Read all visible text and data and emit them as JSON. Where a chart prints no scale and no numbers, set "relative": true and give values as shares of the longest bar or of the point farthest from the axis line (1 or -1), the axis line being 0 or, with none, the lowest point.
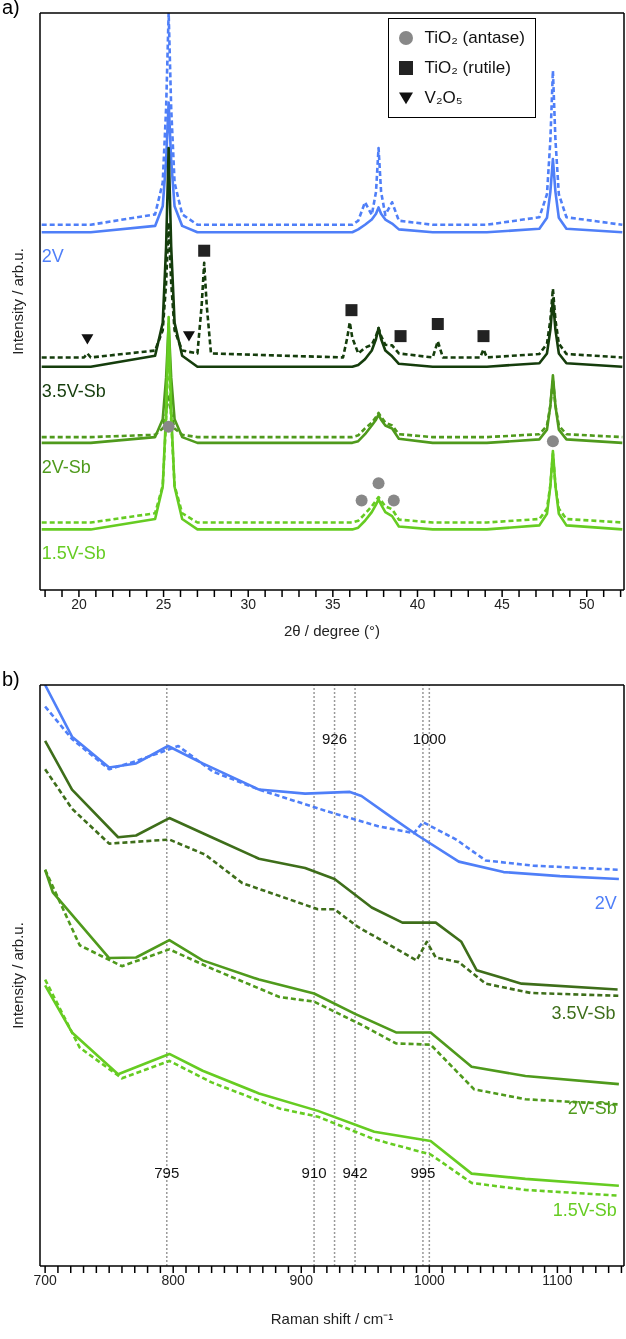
{
  "chart_data": [
    {
      "type": "line",
      "title": "a)",
      "xlabel": "2θ / degree (°)",
      "ylabel": "Intensity / arb.u.",
      "relative": true,
      "legend": "top right",
      "xlim": [
        17.7,
        52.2
      ],
      "xticks": [
        {
          "value": 18,
          "label": null
        },
        {
          "value": 19,
          "label": null
        },
        20,
        {
          "value": 21,
          "label": null
        },
        {
          "value": 22,
          "label": null
        },
        {
          "value": 23,
          "label": null
        },
        {
          "value": 24,
          "label": null
        },
        25,
        {
          "value": 26,
          "label": null
        },
        {
          "value": 27,
          "label": null
        },
        {
          "value": 28,
          "label": null
        },
        {
          "value": 29,
          "label": null
        },
        30,
        {
          "value": 31,
          "label": null
        },
        {
          "value": 32,
          "label": null
        },
        {
          "value": 33,
          "label": null
        },
        {
          "value": 34,
          "label": null
        },
        35,
        {
          "value": 36,
          "label": null
        },
        {
          "value": 37,
          "label": null
        },
        {
          "value": 38,
          "label": null
        },
        {
          "value": 39,
          "label": null
        },
        40,
        {
          "value": 41,
          "label": null
        },
        {
          "value": 42,
          "label": null
        },
        {
          "value": 43,
          "label": null
        },
        {
          "value": 44,
          "label": null
        },
        45,
        {
          "value": 46,
          "label": null
        },
        {
          "value": 47,
          "label": null
        },
        {
          "value": 48,
          "label": null
        },
        {
          "value": 49,
          "label": null
        },
        50,
        {
          "value": 51,
          "label": null
        },
        {
          "value": 52,
          "label": null
        }
      ],
      "x": [
        17.8,
        20.3,
        20.5,
        20.7,
        24.5,
        24.95,
        25.15,
        25.3,
        25.45,
        25.65,
        26.1,
        27.0,
        27.25,
        27.4,
        27.55,
        27.8,
        35.6,
        35.85,
        36.0,
        36.15,
        36.5,
        36.9,
        37.3,
        37.55,
        37.7,
        37.85,
        38.1,
        38.5,
        38.9,
        40.9,
        41.2,
        41.5,
        43.7,
        43.9,
        44.1,
        47.2,
        47.65,
        47.85,
        48.0,
        48.15,
        48.35,
        48.8,
        52.1
      ],
      "series": [
        {
          "name": "2V",
          "color": "#4f7ff8",
          "line_style": "solid",
          "values": [
            0.62,
            0.62,
            0.62,
            0.62,
            0.631,
            0.665,
            0.744,
            0.845,
            0.744,
            0.665,
            0.631,
            0.62,
            0.62,
            0.62,
            0.62,
            0.62,
            0.62,
            0.62,
            0.62,
            0.62,
            0.625,
            0.633,
            0.642,
            0.652,
            0.663,
            0.652,
            0.642,
            0.635,
            0.625,
            0.62,
            0.62,
            0.62,
            0.62,
            0.62,
            0.62,
            0.626,
            0.645,
            0.69,
            0.747,
            0.69,
            0.645,
            0.626,
            0.62
          ]
        },
        {
          "color": "#4f7ff8",
          "line_style": "dashed",
          "values": [
            0.633,
            0.633,
            0.633,
            0.633,
            0.651,
            0.706,
            0.835,
            1.0,
            0.835,
            0.706,
            0.651,
            0.633,
            0.633,
            0.633,
            0.633,
            0.633,
            0.633,
            0.633,
            0.633,
            0.633,
            0.64,
            0.672,
            0.65,
            0.69,
            0.766,
            0.69,
            0.65,
            0.672,
            0.64,
            0.633,
            0.633,
            0.633,
            0.633,
            0.633,
            0.633,
            0.646,
            0.686,
            0.78,
            0.9,
            0.78,
            0.686,
            0.646,
            0.633
          ]
        },
        {
          "name": "3.5V-Sb",
          "color": "#153d0c",
          "line_style": "solid",
          "values": [
            0.387,
            0.387,
            0.387,
            0.387,
            0.406,
            0.463,
            0.595,
            0.766,
            0.595,
            0.463,
            0.406,
            0.387,
            0.387,
            0.387,
            0.387,
            0.387,
            0.387,
            0.387,
            0.387,
            0.387,
            0.39,
            0.4,
            0.415,
            0.435,
            0.454,
            0.435,
            0.415,
            0.405,
            0.392,
            0.387,
            0.387,
            0.387,
            0.387,
            0.387,
            0.387,
            0.393,
            0.41,
            0.451,
            0.504,
            0.451,
            0.41,
            0.393,
            0.387
          ]
        },
        {
          "color": "#153d0c",
          "line_style": "dashed",
          "values": [
            0.403,
            0.403,
            0.41,
            0.403,
            0.415,
            0.45,
            0.532,
            0.637,
            0.532,
            0.45,
            0.415,
            0.41,
            0.493,
            0.567,
            0.493,
            0.41,
            0.403,
            0.437,
            0.464,
            0.437,
            0.41,
            0.42,
            0.425,
            0.44,
            0.454,
            0.44,
            0.425,
            0.424,
            0.41,
            0.403,
            0.431,
            0.403,
            0.403,
            0.417,
            0.403,
            0.409,
            0.427,
            0.468,
            0.522,
            0.468,
            0.427,
            0.409,
            0.403
          ]
        },
        {
          "name": "2V-Sb",
          "color": "#4f9a1c",
          "line_style": "solid",
          "values": [
            0.255,
            0.255,
            0.255,
            0.255,
            0.265,
            0.296,
            0.368,
            0.461,
            0.368,
            0.296,
            0.265,
            0.255,
            0.255,
            0.255,
            0.255,
            0.255,
            0.255,
            0.255,
            0.255,
            0.255,
            0.258,
            0.27,
            0.285,
            0.295,
            0.304,
            0.295,
            0.285,
            0.28,
            0.262,
            0.255,
            0.255,
            0.255,
            0.255,
            0.255,
            0.255,
            0.261,
            0.278,
            0.319,
            0.372,
            0.319,
            0.278,
            0.261,
            0.255
          ]
        },
        {
          "color": "#4f9a1c",
          "line_style": "dashed",
          "values": [
            0.265,
            0.265,
            0.265,
            0.265,
            0.269,
            0.28,
            0.306,
            0.339,
            0.306,
            0.28,
            0.269,
            0.265,
            0.265,
            0.265,
            0.265,
            0.265,
            0.265,
            0.265,
            0.265,
            0.265,
            0.268,
            0.28,
            0.29,
            0.3,
            0.307,
            0.3,
            0.29,
            0.285,
            0.27,
            0.265,
            0.265,
            0.265,
            0.265,
            0.265,
            0.265,
            0.27,
            0.285,
            0.32,
            0.365,
            0.32,
            0.285,
            0.27,
            0.265
          ]
        },
        {
          "name": "1.5V-Sb",
          "color": "#66cc22",
          "line_style": "solid",
          "values": [
            0.105,
            0.105,
            0.105,
            0.105,
            0.123,
            0.179,
            0.307,
            0.473,
            0.307,
            0.179,
            0.123,
            0.105,
            0.105,
            0.105,
            0.105,
            0.105,
            0.105,
            0.105,
            0.105,
            0.105,
            0.108,
            0.12,
            0.135,
            0.148,
            0.157,
            0.148,
            0.135,
            0.128,
            0.11,
            0.105,
            0.105,
            0.105,
            0.105,
            0.105,
            0.105,
            0.112,
            0.132,
            0.18,
            0.241,
            0.18,
            0.132,
            0.112,
            0.105
          ]
        },
        {
          "color": "#66cc22",
          "line_style": "dashed",
          "values": [
            0.117,
            0.117,
            0.117,
            0.117,
            0.133,
            0.181,
            0.292,
            0.435,
            0.292,
            0.181,
            0.133,
            0.117,
            0.117,
            0.117,
            0.117,
            0.117,
            0.117,
            0.117,
            0.117,
            0.117,
            0.12,
            0.132,
            0.145,
            0.155,
            0.161,
            0.155,
            0.145,
            0.14,
            0.122,
            0.117,
            0.117,
            0.117,
            0.117,
            0.117,
            0.117,
            0.123,
            0.141,
            0.182,
            0.236,
            0.182,
            0.141,
            0.123,
            0.117
          ]
        },
        {
          "type": "scatter",
          "name": "TiO₂ (antase)",
          "color": "#888888",
          "marker": "circle",
          "x": [
            25.3,
            48.0,
            36.7,
            37.7,
            38.6
          ],
          "values": [
            0.283,
            0.258,
            0.155,
            0.185,
            0.155
          ]
        },
        {
          "type": "scatter",
          "name": "TiO₂ (rutile)",
          "color": "#222222",
          "marker": "square",
          "x": [
            27.4,
            36.1,
            39.0,
            41.2,
            43.9
          ],
          "values": [
            0.588,
            0.485,
            0.44,
            0.461,
            0.44
          ]
        },
        {
          "type": "scatter",
          "name": "V₂O₅",
          "color": "#111111",
          "marker": "triangle",
          "x": [
            20.5,
            26.5
          ],
          "values": [
            0.435,
            0.44
          ]
        }
      ]
    },
    {
      "type": "line",
      "title": "b)",
      "xlabel": "Raman shift / cm⁻¹",
      "ylabel": "Intensity / arb.u.",
      "relative": true,
      "xlim": [
        696,
        1152
      ],
      "xticks": [
        700,
        {
          "value": 710,
          "label": null
        },
        {
          "value": 720,
          "label": null
        },
        {
          "value": 730,
          "label": null
        },
        {
          "value": 740,
          "label": null
        },
        {
          "value": 750,
          "label": null
        },
        {
          "value": 760,
          "label": null
        },
        {
          "value": 770,
          "label": null
        },
        {
          "value": 780,
          "label": null
        },
        {
          "value": 790,
          "label": null
        },
        800,
        {
          "value": 810,
          "label": null
        },
        {
          "value": 820,
          "label": null
        },
        {
          "value": 830,
          "label": null
        },
        {
          "value": 840,
          "label": null
        },
        {
          "value": 850,
          "label": null
        },
        {
          "value": 860,
          "label": null
        },
        {
          "value": 870,
          "label": null
        },
        {
          "value": 880,
          "label": null
        },
        {
          "value": 890,
          "label": null
        },
        900,
        {
          "value": 910,
          "label": null
        },
        {
          "value": 920,
          "label": null
        },
        {
          "value": 930,
          "label": null
        },
        {
          "value": 940,
          "label": null
        },
        {
          "value": 950,
          "label": null
        },
        {
          "value": 960,
          "label": null
        },
        {
          "value": 970,
          "label": null
        },
        {
          "value": 980,
          "label": null
        },
        {
          "value": 990,
          "label": null
        },
        1000,
        {
          "value": 1010,
          "label": null
        },
        {
          "value": 1020,
          "label": null
        },
        {
          "value": 1030,
          "label": null
        },
        {
          "value": 1040,
          "label": null
        },
        {
          "value": 1050,
          "label": null
        },
        {
          "value": 1060,
          "label": null
        },
        {
          "value": 1070,
          "label": null
        },
        {
          "value": 1080,
          "label": null
        },
        {
          "value": 1090,
          "label": null
        },
        1100,
        {
          "value": 1110,
          "label": null
        },
        {
          "value": 1120,
          "label": null
        },
        {
          "value": 1130,
          "label": null
        },
        {
          "value": 1140,
          "label": null
        },
        {
          "value": 1150,
          "label": null
        }
      ],
      "ref_lines": [
        {
          "axis": "x",
          "value": 795,
          "label": "795",
          "color": "#999999",
          "line_style": "dotted"
        },
        {
          "axis": "x",
          "value": 910,
          "label": "910",
          "color": "#999999",
          "line_style": "dotted"
        },
        {
          "axis": "x",
          "value": 926,
          "label": "926",
          "color": "#999999",
          "line_style": "dotted"
        },
        {
          "axis": "x",
          "value": 942,
          "label": "942",
          "color": "#999999",
          "line_style": "dotted"
        },
        {
          "axis": "x",
          "value": 995,
          "label": "995",
          "color": "#999999",
          "line_style": "dotted"
        },
        {
          "axis": "x",
          "value": 1000,
          "label": "1000",
          "color": "#999999",
          "line_style": "dotted"
        }
      ],
      "series": [
        {
          "name": "2V",
          "color": "#4f7ff8",
          "line_style": "solid",
          "x": [
            700,
            721,
            750,
            771,
            796,
            823,
            867,
            903,
            938,
            947,
            970,
            991,
            1023,
            1058,
            1102,
            1148
          ],
          "values": [
            1.0,
            0.911,
            0.858,
            0.865,
            0.895,
            0.865,
            0.82,
            0.813,
            0.816,
            0.809,
            0.773,
            0.741,
            0.696,
            0.678,
            0.671,
            0.666
          ]
        },
        {
          "color": "#4f7ff8",
          "line_style": "dashed",
          "x": [
            700,
            721,
            750,
            771,
            804,
            831,
            867,
            924,
            960,
            988,
            995,
            1021,
            1044,
            1081,
            1148
          ],
          "values": [
            0.963,
            0.907,
            0.855,
            0.869,
            0.895,
            0.851,
            0.82,
            0.78,
            0.757,
            0.745,
            0.764,
            0.734,
            0.698,
            0.689,
            0.682
          ]
        },
        {
          "name": "3.5V-Sb",
          "color": "#3e6e1a",
          "line_style": "solid",
          "x": [
            700,
            721,
            757,
            771,
            797,
            830,
            867,
            903,
            926,
            955,
            979,
            1005,
            1025,
            1037,
            1072,
            1147
          ],
          "values": [
            0.904,
            0.82,
            0.738,
            0.741,
            0.771,
            0.738,
            0.701,
            0.685,
            0.666,
            0.617,
            0.591,
            0.591,
            0.558,
            0.509,
            0.486,
            0.476
          ]
        },
        {
          "color": "#3e6e1a",
          "line_style": "dashed",
          "x": [
            700,
            721,
            750,
            797,
            825,
            854,
            913,
            926,
            944,
            990,
            998,
            1005,
            1023,
            1044,
            1079,
            1148
          ],
          "values": [
            0.855,
            0.787,
            0.727,
            0.734,
            0.708,
            0.659,
            0.614,
            0.614,
            0.584,
            0.526,
            0.558,
            0.531,
            0.523,
            0.486,
            0.47,
            0.465
          ]
        },
        {
          "name": "2V-Sb",
          "color": "#4f9a1c",
          "line_style": "solid",
          "x": [
            700,
            706,
            750,
            771,
            797,
            823,
            867,
            910,
            942,
            974,
            1001,
            1033,
            1075,
            1148
          ],
          "values": [
            0.682,
            0.643,
            0.53,
            0.531,
            0.561,
            0.526,
            0.493,
            0.469,
            0.434,
            0.402,
            0.402,
            0.343,
            0.327,
            0.313
          ]
        },
        {
          "color": "#4f9a1c",
          "line_style": "dashed",
          "x": [
            700,
            727,
            760,
            797,
            830,
            883,
            910,
            948,
            974,
            1001,
            1035,
            1075,
            1148
          ],
          "values": [
            0.682,
            0.552,
            0.516,
            0.545,
            0.512,
            0.463,
            0.455,
            0.414,
            0.383,
            0.381,
            0.304,
            0.287,
            0.278
          ]
        },
        {
          "name": "1.5V-Sb",
          "color": "#66cc22",
          "line_style": "solid",
          "x": [
            700,
            721,
            757,
            797,
            823,
            867,
            913,
            957,
            1001,
            1033,
            1075,
            1148
          ],
          "values": [
            0.483,
            0.402,
            0.33,
            0.365,
            0.336,
            0.297,
            0.267,
            0.231,
            0.215,
            0.159,
            0.15,
            0.138
          ]
        },
        {
          "color": "#66cc22",
          "line_style": "dashed",
          "x": [
            700,
            727,
            760,
            797,
            830,
            883,
            913,
            957,
            1001,
            1033,
            1075,
            1148
          ],
          "values": [
            0.493,
            0.376,
            0.323,
            0.353,
            0.316,
            0.271,
            0.257,
            0.218,
            0.192,
            0.143,
            0.131,
            0.121
          ]
        }
      ]
    }
  ]
}
